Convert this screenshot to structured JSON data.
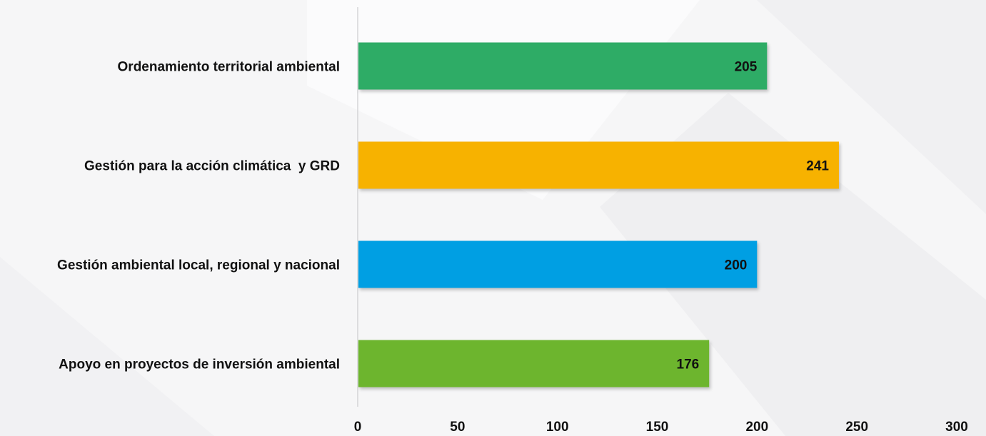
{
  "chart_data": {
    "type": "bar",
    "orientation": "horizontal",
    "categories": [
      "Ordenamiento territorial ambiental",
      "Gestión para la acción climática  y GRD",
      "Gestión ambiental local, regional y nacional",
      "Apoyo en proyectos de inversión ambiental"
    ],
    "values": [
      205,
      241,
      200,
      176
    ],
    "colors": [
      "#2fac66",
      "#f7b200",
      "#009fe3",
      "#6db52e"
    ],
    "xlim": [
      0,
      300
    ],
    "xticks": [
      0,
      50,
      100,
      150,
      200,
      250,
      300
    ],
    "data_labels": true,
    "grid": false,
    "title": "",
    "xlabel": "",
    "ylabel": ""
  }
}
